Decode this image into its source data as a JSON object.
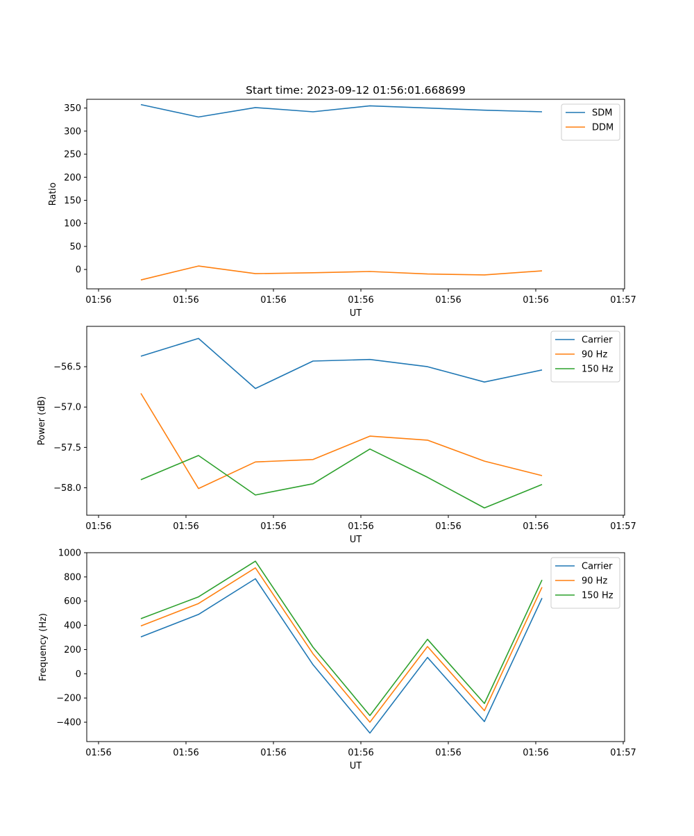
{
  "chart_data": [
    {
      "type": "line",
      "title": "Start time: 2023-09-12 01:56:01.668699",
      "xlabel": "UT",
      "ylabel": "Ratio",
      "x_tick_labels": [
        "01:56",
        "01:56",
        "01:56",
        "01:56",
        "01:56",
        "01:56",
        "01:57"
      ],
      "y_ticks": [
        0,
        50,
        100,
        150,
        200,
        250,
        300,
        350
      ],
      "ylim": [
        -42,
        369
      ],
      "series": [
        {
          "name": "SDM",
          "color": "#1f77b4",
          "values": [
            357.5,
            330.6,
            351.1,
            341.9,
            354.9,
            350.1,
            345.3,
            341.9
          ]
        },
        {
          "name": "DDM",
          "color": "#ff7f0e",
          "values": [
            -22.8,
            7.5,
            -9.1,
            -7.1,
            -4.3,
            -9.8,
            -11.8,
            -3.0
          ]
        }
      ],
      "legend": "top-right"
    },
    {
      "type": "line",
      "title": "",
      "xlabel": "UT",
      "ylabel": "Power (dB)",
      "x_tick_labels": [
        "01:56",
        "01:56",
        "01:56",
        "01:56",
        "01:56",
        "01:56",
        "01:57"
      ],
      "y_ticks": [
        -58.0,
        -57.5,
        -57.0,
        -56.5
      ],
      "y_tick_labels": [
        "−58.0",
        "−57.5",
        "−57.0",
        "−56.5"
      ],
      "ylim": [
        -58.34,
        -56.0
      ],
      "series": [
        {
          "name": "Carrier",
          "color": "#1f77b4",
          "values": [
            -56.37,
            -56.15,
            -56.77,
            -56.43,
            -56.41,
            -56.5,
            -56.69,
            -56.54
          ]
        },
        {
          "name": "90 Hz",
          "color": "#ff7f0e",
          "values": [
            -56.83,
            -58.01,
            -57.68,
            -57.65,
            -57.36,
            -57.41,
            -57.67,
            -57.85
          ]
        },
        {
          "name": "150 Hz",
          "color": "#2ca02c",
          "values": [
            -57.9,
            -57.6,
            -58.09,
            -57.95,
            -57.52,
            -57.87,
            -58.25,
            -57.96
          ]
        }
      ],
      "legend": "top-right"
    },
    {
      "type": "line",
      "title": "",
      "xlabel": "UT",
      "ylabel": "Frequency (Hz)",
      "x_tick_labels": [
        "01:56",
        "01:56",
        "01:56",
        "01:56",
        "01:56",
        "01:56",
        "01:57"
      ],
      "y_ticks": [
        -400,
        -200,
        0,
        200,
        400,
        600,
        800,
        1000
      ],
      "y_tick_labels": [
        "−400",
        "−200",
        "0",
        "200",
        "400",
        "600",
        "800",
        "1000"
      ],
      "ylim": [
        -560,
        1000
      ],
      "series": [
        {
          "name": "Carrier",
          "color": "#1f77b4",
          "values": [
            305,
            490,
            785,
            75,
            -490,
            135,
            -395,
            625
          ]
        },
        {
          "name": "90 Hz",
          "color": "#ff7f0e",
          "values": [
            395,
            580,
            875,
            165,
            -400,
            225,
            -305,
            715
          ]
        },
        {
          "name": "150 Hz",
          "color": "#2ca02c",
          "values": [
            455,
            635,
            930,
            220,
            -345,
            285,
            -245,
            775
          ]
        }
      ],
      "legend": "top-right"
    }
  ]
}
